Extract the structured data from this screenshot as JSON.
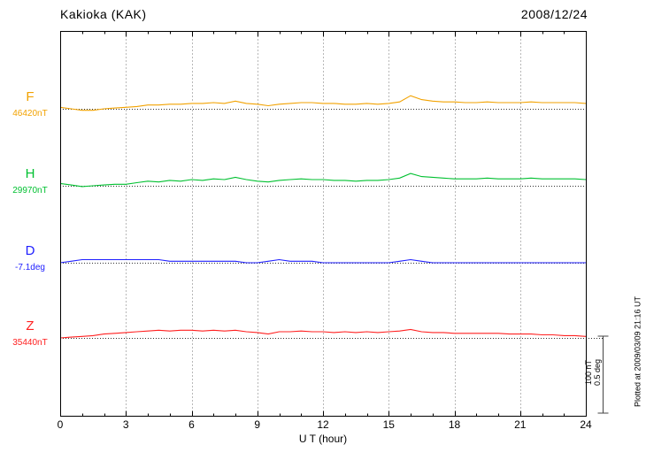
{
  "header": {
    "title": "Kakioka (KAK)",
    "date": "2008/12/24"
  },
  "axis": {
    "xlabel": "U T (hour)",
    "ticks": [
      0,
      3,
      6,
      9,
      12,
      15,
      18,
      21,
      24
    ]
  },
  "scalebar": {
    "line1": "100 nT",
    "line2": "0.5 deg"
  },
  "note": "Plotted at 2009/03/09 21:16 UT",
  "chart_data": {
    "type": "line",
    "title": "Kakioka (KAK)",
    "date": "2008/12/24",
    "xlabel": "U T (hour)",
    "x_start": 0,
    "x_step": 0.5,
    "x_end": 24,
    "x_ticks": [
      0,
      3,
      6,
      9,
      12,
      15,
      18,
      21,
      24
    ],
    "grid": "vertical-dotted-every-3h",
    "scale_reference": {
      "nT": 100,
      "deg": 0.5
    },
    "series": [
      {
        "name": "F",
        "baseline_label": "46420nT",
        "baseline_value": 46420,
        "unit": "nT",
        "color": "#f2a200",
        "offsets_from_baseline": [
          2,
          0,
          -2,
          -2,
          0,
          1,
          2,
          3,
          5,
          5,
          6,
          6,
          7,
          7,
          8,
          7,
          10,
          7,
          6,
          4,
          6,
          7,
          8,
          8,
          7,
          7,
          6,
          6,
          7,
          6,
          7,
          9,
          17,
          12,
          10,
          9,
          9,
          8,
          8,
          9,
          8,
          8,
          8,
          9,
          8,
          8,
          8,
          8,
          7
        ]
      },
      {
        "name": "H",
        "baseline_label": "29970nT",
        "baseline_value": 29970,
        "unit": "nT",
        "color": "#00c030",
        "offsets_from_baseline": [
          3,
          1,
          -1,
          0,
          1,
          2,
          2,
          4,
          6,
          5,
          7,
          6,
          8,
          7,
          9,
          8,
          11,
          8,
          6,
          5,
          7,
          8,
          9,
          8,
          8,
          7,
          7,
          6,
          7,
          7,
          8,
          10,
          16,
          12,
          11,
          10,
          9,
          9,
          9,
          10,
          9,
          9,
          9,
          10,
          9,
          9,
          9,
          9,
          8
        ]
      },
      {
        "name": "D",
        "baseline_label": "-7.1deg",
        "baseline_value": -7.1,
        "unit": "deg",
        "color": "#2020ff",
        "offsets_from_baseline": [
          0,
          0.01,
          0.02,
          0.02,
          0.02,
          0.02,
          0.02,
          0.02,
          0.02,
          0.02,
          0.01,
          0.01,
          0.01,
          0.01,
          0.01,
          0.01,
          0.01,
          0,
          0,
          0.01,
          0.02,
          0.01,
          0.01,
          0.01,
          0,
          0,
          0,
          0,
          0,
          0,
          0,
          0.01,
          0.02,
          0.01,
          0,
          0,
          0,
          0,
          0,
          0,
          0,
          0,
          0,
          0,
          0,
          0,
          0,
          0,
          0
        ]
      },
      {
        "name": "Z",
        "baseline_label": "35440nT",
        "baseline_value": 35440,
        "unit": "nT",
        "color": "#ff2020",
        "offsets_from_baseline": [
          0,
          1,
          2,
          3,
          5,
          6,
          7,
          8,
          9,
          10,
          9,
          10,
          10,
          9,
          10,
          9,
          10,
          8,
          7,
          5,
          8,
          8,
          9,
          8,
          8,
          7,
          8,
          7,
          8,
          7,
          8,
          9,
          11,
          8,
          7,
          7,
          6,
          6,
          6,
          6,
          6,
          5,
          5,
          5,
          4,
          4,
          3,
          3,
          2
        ]
      }
    ]
  }
}
